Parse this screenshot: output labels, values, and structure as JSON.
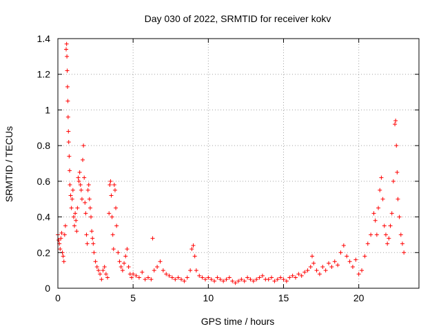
{
  "chart_data": {
    "type": "scatter",
    "title": "Day 030 of 2022, SRMTID for receiver kokv",
    "xlabel": "GPS time / hours",
    "ylabel": "SRMTID / TECUs",
    "xlim": [
      0,
      24
    ],
    "ylim": [
      0,
      1.4
    ],
    "xticks": [
      0,
      5,
      10,
      15,
      20
    ],
    "yticks": [
      0,
      0.2,
      0.4,
      0.6,
      0.8,
      1,
      1.2,
      1.4
    ],
    "xtick_labels": [
      "0",
      "5",
      "10",
      "15",
      "20"
    ],
    "ytick_labels": [
      "0",
      "0.2",
      "0.4",
      "0.6",
      "0.8",
      "1",
      "1.2",
      "1.4"
    ],
    "grid": true,
    "marker": "+",
    "color": "#ff0000",
    "series": [
      {
        "name": "SRMTID",
        "points": [
          [
            0.0,
            0.3
          ],
          [
            0.05,
            0.27
          ],
          [
            0.1,
            0.25
          ],
          [
            0.15,
            0.22
          ],
          [
            0.2,
            0.28
          ],
          [
            0.25,
            0.31
          ],
          [
            0.3,
            0.2
          ],
          [
            0.35,
            0.18
          ],
          [
            0.4,
            0.15
          ],
          [
            0.45,
            0.3
          ],
          [
            0.5,
            0.35
          ],
          [
            0.55,
            1.34
          ],
          [
            0.58,
            1.37
          ],
          [
            0.6,
            1.3
          ],
          [
            0.62,
            1.22
          ],
          [
            0.64,
            1.13
          ],
          [
            0.66,
            1.05
          ],
          [
            0.68,
            0.96
          ],
          [
            0.7,
            0.88
          ],
          [
            0.72,
            0.82
          ],
          [
            0.75,
            0.74
          ],
          [
            0.78,
            0.66
          ],
          [
            0.8,
            0.58
          ],
          [
            0.85,
            0.52
          ],
          [
            0.9,
            0.45
          ],
          [
            0.95,
            0.5
          ],
          [
            1.0,
            0.55
          ],
          [
            1.05,
            0.4
          ],
          [
            1.1,
            0.35
          ],
          [
            1.15,
            0.42
          ],
          [
            1.2,
            0.38
          ],
          [
            1.25,
            0.32
          ],
          [
            1.3,
            0.45
          ],
          [
            1.35,
            0.62
          ],
          [
            1.4,
            0.6
          ],
          [
            1.45,
            0.65
          ],
          [
            1.5,
            0.58
          ],
          [
            1.55,
            0.55
          ],
          [
            1.6,
            0.5
          ],
          [
            1.65,
            0.72
          ],
          [
            1.7,
            0.8
          ],
          [
            1.75,
            0.62
          ],
          [
            1.8,
            0.48
          ],
          [
            1.85,
            0.42
          ],
          [
            1.9,
            0.3
          ],
          [
            1.95,
            0.25
          ],
          [
            2.0,
            0.55
          ],
          [
            2.05,
            0.58
          ],
          [
            2.1,
            0.5
          ],
          [
            2.15,
            0.45
          ],
          [
            2.2,
            0.4
          ],
          [
            2.25,
            0.32
          ],
          [
            2.3,
            0.28
          ],
          [
            2.35,
            0.25
          ],
          [
            2.4,
            0.2
          ],
          [
            2.5,
            0.15
          ],
          [
            2.6,
            0.12
          ],
          [
            2.7,
            0.1
          ],
          [
            2.8,
            0.08
          ],
          [
            2.9,
            0.05
          ],
          [
            3.0,
            0.1
          ],
          [
            3.1,
            0.12
          ],
          [
            3.2,
            0.08
          ],
          [
            3.3,
            0.06
          ],
          [
            3.4,
            0.42
          ],
          [
            3.45,
            0.58
          ],
          [
            3.5,
            0.6
          ],
          [
            3.55,
            0.52
          ],
          [
            3.6,
            0.4
          ],
          [
            3.65,
            0.3
          ],
          [
            3.7,
            0.22
          ],
          [
            3.75,
            0.58
          ],
          [
            3.8,
            0.55
          ],
          [
            3.85,
            0.45
          ],
          [
            3.9,
            0.35
          ],
          [
            4.0,
            0.2
          ],
          [
            4.1,
            0.15
          ],
          [
            4.2,
            0.12
          ],
          [
            4.3,
            0.1
          ],
          [
            4.4,
            0.14
          ],
          [
            4.5,
            0.18
          ],
          [
            4.6,
            0.22
          ],
          [
            4.7,
            0.12
          ],
          [
            4.8,
            0.08
          ],
          [
            4.9,
            0.06
          ],
          [
            5.0,
            0.08
          ],
          [
            5.2,
            0.07
          ],
          [
            5.4,
            0.06
          ],
          [
            5.6,
            0.09
          ],
          [
            5.8,
            0.05
          ],
          [
            6.0,
            0.06
          ],
          [
            6.2,
            0.05
          ],
          [
            6.3,
            0.28
          ],
          [
            6.4,
            0.1
          ],
          [
            6.6,
            0.12
          ],
          [
            6.8,
            0.15
          ],
          [
            7.0,
            0.1
          ],
          [
            7.2,
            0.08
          ],
          [
            7.4,
            0.07
          ],
          [
            7.6,
            0.06
          ],
          [
            7.8,
            0.05
          ],
          [
            8.0,
            0.06
          ],
          [
            8.2,
            0.05
          ],
          [
            8.4,
            0.04
          ],
          [
            8.6,
            0.06
          ],
          [
            8.8,
            0.1
          ],
          [
            8.9,
            0.22
          ],
          [
            9.0,
            0.24
          ],
          [
            9.1,
            0.18
          ],
          [
            9.2,
            0.1
          ],
          [
            9.4,
            0.07
          ],
          [
            9.6,
            0.06
          ],
          [
            9.8,
            0.05
          ],
          [
            10.0,
            0.06
          ],
          [
            10.2,
            0.05
          ],
          [
            10.4,
            0.04
          ],
          [
            10.6,
            0.06
          ],
          [
            10.8,
            0.05
          ],
          [
            11.0,
            0.04
          ],
          [
            11.2,
            0.05
          ],
          [
            11.4,
            0.06
          ],
          [
            11.6,
            0.04
          ],
          [
            11.8,
            0.03
          ],
          [
            12.0,
            0.04
          ],
          [
            12.2,
            0.05
          ],
          [
            12.4,
            0.04
          ],
          [
            12.6,
            0.06
          ],
          [
            12.8,
            0.05
          ],
          [
            13.0,
            0.04
          ],
          [
            13.2,
            0.05
          ],
          [
            13.4,
            0.06
          ],
          [
            13.6,
            0.07
          ],
          [
            13.8,
            0.05
          ],
          [
            14.0,
            0.05
          ],
          [
            14.2,
            0.06
          ],
          [
            14.4,
            0.04
          ],
          [
            14.6,
            0.05
          ],
          [
            14.8,
            0.06
          ],
          [
            15.0,
            0.05
          ],
          [
            15.2,
            0.04
          ],
          [
            15.4,
            0.06
          ],
          [
            15.6,
            0.07
          ],
          [
            15.8,
            0.06
          ],
          [
            16.0,
            0.08
          ],
          [
            16.2,
            0.07
          ],
          [
            16.4,
            0.09
          ],
          [
            16.6,
            0.1
          ],
          [
            16.8,
            0.12
          ],
          [
            16.9,
            0.18
          ],
          [
            17.0,
            0.14
          ],
          [
            17.2,
            0.1
          ],
          [
            17.4,
            0.08
          ],
          [
            17.6,
            0.12
          ],
          [
            17.8,
            0.1
          ],
          [
            18.0,
            0.14
          ],
          [
            18.2,
            0.12
          ],
          [
            18.4,
            0.15
          ],
          [
            18.6,
            0.13
          ],
          [
            18.8,
            0.2
          ],
          [
            19.0,
            0.24
          ],
          [
            19.2,
            0.18
          ],
          [
            19.4,
            0.15
          ],
          [
            19.6,
            0.12
          ],
          [
            19.8,
            0.16
          ],
          [
            20.0,
            0.08
          ],
          [
            20.2,
            0.1
          ],
          [
            20.4,
            0.18
          ],
          [
            20.6,
            0.25
          ],
          [
            20.8,
            0.3
          ],
          [
            21.0,
            0.42
          ],
          [
            21.1,
            0.38
          ],
          [
            21.2,
            0.3
          ],
          [
            21.3,
            0.45
          ],
          [
            21.4,
            0.55
          ],
          [
            21.5,
            0.62
          ],
          [
            21.6,
            0.5
          ],
          [
            21.7,
            0.35
          ],
          [
            21.8,
            0.3
          ],
          [
            21.9,
            0.25
          ],
          [
            22.0,
            0.28
          ],
          [
            22.1,
            0.35
          ],
          [
            22.2,
            0.42
          ],
          [
            22.3,
            0.6
          ],
          [
            22.4,
            0.92
          ],
          [
            22.45,
            0.94
          ],
          [
            22.5,
            0.8
          ],
          [
            22.55,
            0.65
          ],
          [
            22.6,
            0.5
          ],
          [
            22.7,
            0.4
          ],
          [
            22.8,
            0.3
          ],
          [
            22.9,
            0.25
          ],
          [
            23.0,
            0.2
          ]
        ]
      }
    ]
  }
}
